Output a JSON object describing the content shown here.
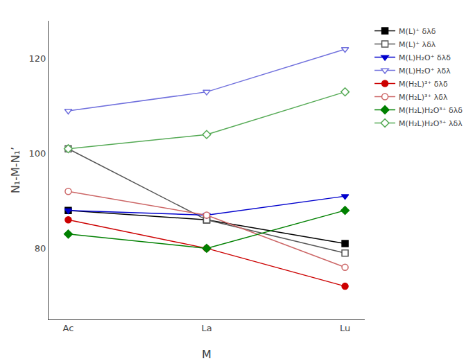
{
  "chart_data": {
    "type": "line",
    "xlabel": "M",
    "ylabel": "N₁-M-N₁’",
    "categories": [
      "Ac",
      "La",
      "Lu"
    ],
    "series": [
      {
        "name": "M(L)⁺ δλδ",
        "color": "#000000",
        "marker": "square",
        "values": [
          88,
          86,
          81
        ]
      },
      {
        "name": "M(L)⁺ λδλ",
        "color": "#555555",
        "marker": "square-open",
        "values": [
          101,
          86,
          79
        ]
      },
      {
        "name": "M(L)H₂O⁺ δλδ",
        "color": "#0000CD",
        "marker": "triangle-down",
        "values": [
          88,
          87,
          91
        ]
      },
      {
        "name": "M(L)H₂O⁺ λδλ",
        "color": "#7070DD",
        "marker": "triangle-down-open",
        "values": [
          109,
          113,
          122
        ]
      },
      {
        "name": "M(H₂L)³⁺ δλδ",
        "color": "#CC0000",
        "marker": "circle",
        "values": [
          86,
          80,
          72
        ]
      },
      {
        "name": "M(H₂L)³⁺ λδλ",
        "color": "#CC6666",
        "marker": "circle-open",
        "values": [
          92,
          87,
          76
        ]
      },
      {
        "name": "M(H₂L)H₂O³⁺ δλδ",
        "color": "#008000",
        "marker": "diamond",
        "values": [
          83,
          80,
          88
        ]
      },
      {
        "name": "M(H₂L)H₂O³⁺ λδλ",
        "color": "#55AA55",
        "marker": "diamond-open",
        "values": [
          101,
          104,
          113
        ]
      }
    ],
    "ylim": [
      65,
      128
    ],
    "yticks": [
      80,
      100,
      120
    ],
    "grid": false,
    "legend": "upper right"
  }
}
